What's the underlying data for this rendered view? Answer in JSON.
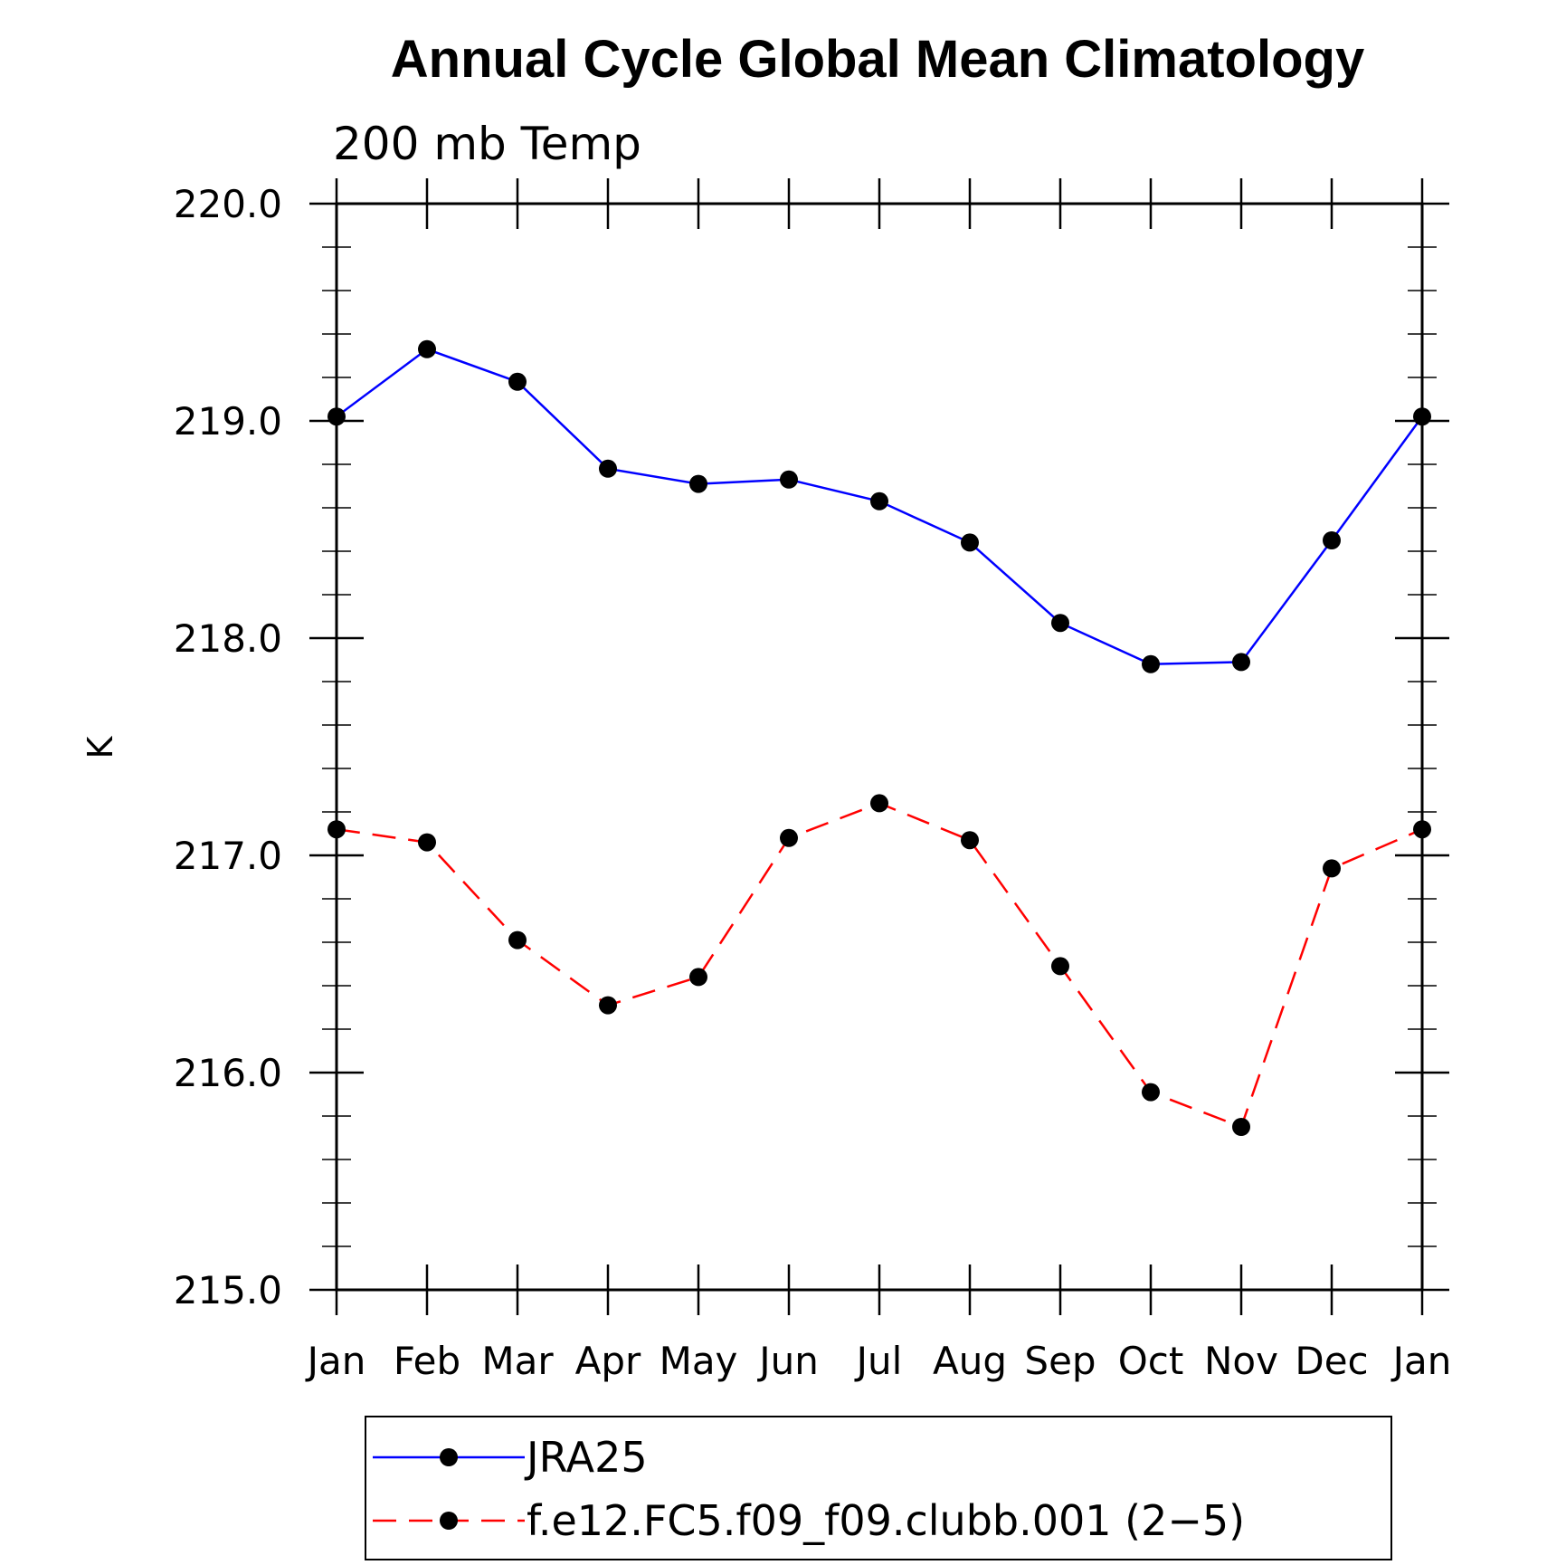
{
  "chart_data": {
    "type": "line",
    "title": "Annual Cycle Global Mean Climatology",
    "subtitle": "200 mb Temp",
    "xlabel": "",
    "ylabel": "K",
    "categories": [
      "Jan",
      "Feb",
      "Mar",
      "Apr",
      "May",
      "Jun",
      "Jul",
      "Aug",
      "Sep",
      "Oct",
      "Nov",
      "Dec",
      "Jan"
    ],
    "ylim": [
      215.0,
      220.0
    ],
    "yticks": [
      220.0,
      219.0,
      218.0,
      217.0,
      216.0,
      215.0
    ],
    "ytick_labels": [
      "220.0",
      "219.0",
      "218.0",
      "217.0",
      "216.0",
      "215.0"
    ],
    "grid": false,
    "legend_position": "bottom",
    "series": [
      {
        "name": "JRA25",
        "color": "#0000ff",
        "style": "solid",
        "marker": "filled-circle",
        "values": [
          219.02,
          219.33,
          219.18,
          218.78,
          218.71,
          218.73,
          218.63,
          218.44,
          218.07,
          217.88,
          217.89,
          218.45,
          219.02
        ]
      },
      {
        "name": "f.e12.FC5.f09_f09.clubb.001 (2−5)",
        "color": "#ff0000",
        "style": "dashed",
        "marker": "filled-circle",
        "values": [
          217.12,
          217.06,
          216.61,
          216.31,
          216.44,
          217.08,
          217.24,
          217.07,
          216.49,
          215.91,
          215.75,
          216.94,
          217.12
        ]
      }
    ]
  }
}
